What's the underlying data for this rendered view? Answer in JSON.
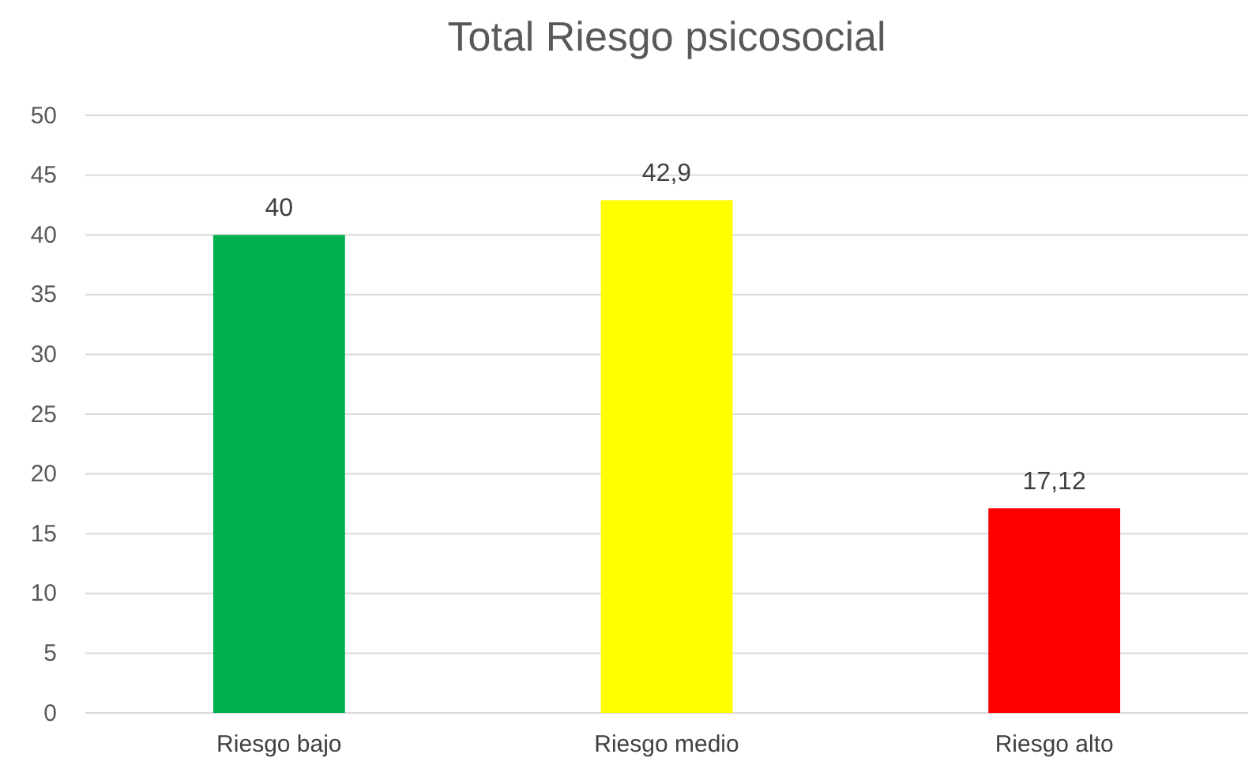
{
  "chart_data": {
    "type": "bar",
    "title": "Total Riesgo psicosocial",
    "categories": [
      "Riesgo bajo",
      "Riesgo medio",
      "Riesgo alto"
    ],
    "values": [
      40,
      42.9,
      17.12
    ],
    "colors": [
      "#00b050",
      "#ffff00",
      "#ff0000"
    ],
    "value_labels": [
      "40",
      "42,9",
      "17,12"
    ],
    "ylim": [
      0,
      50
    ],
    "yticks": [
      0,
      5,
      10,
      15,
      20,
      25,
      30,
      35,
      40,
      45,
      50
    ],
    "grid": "y"
  }
}
